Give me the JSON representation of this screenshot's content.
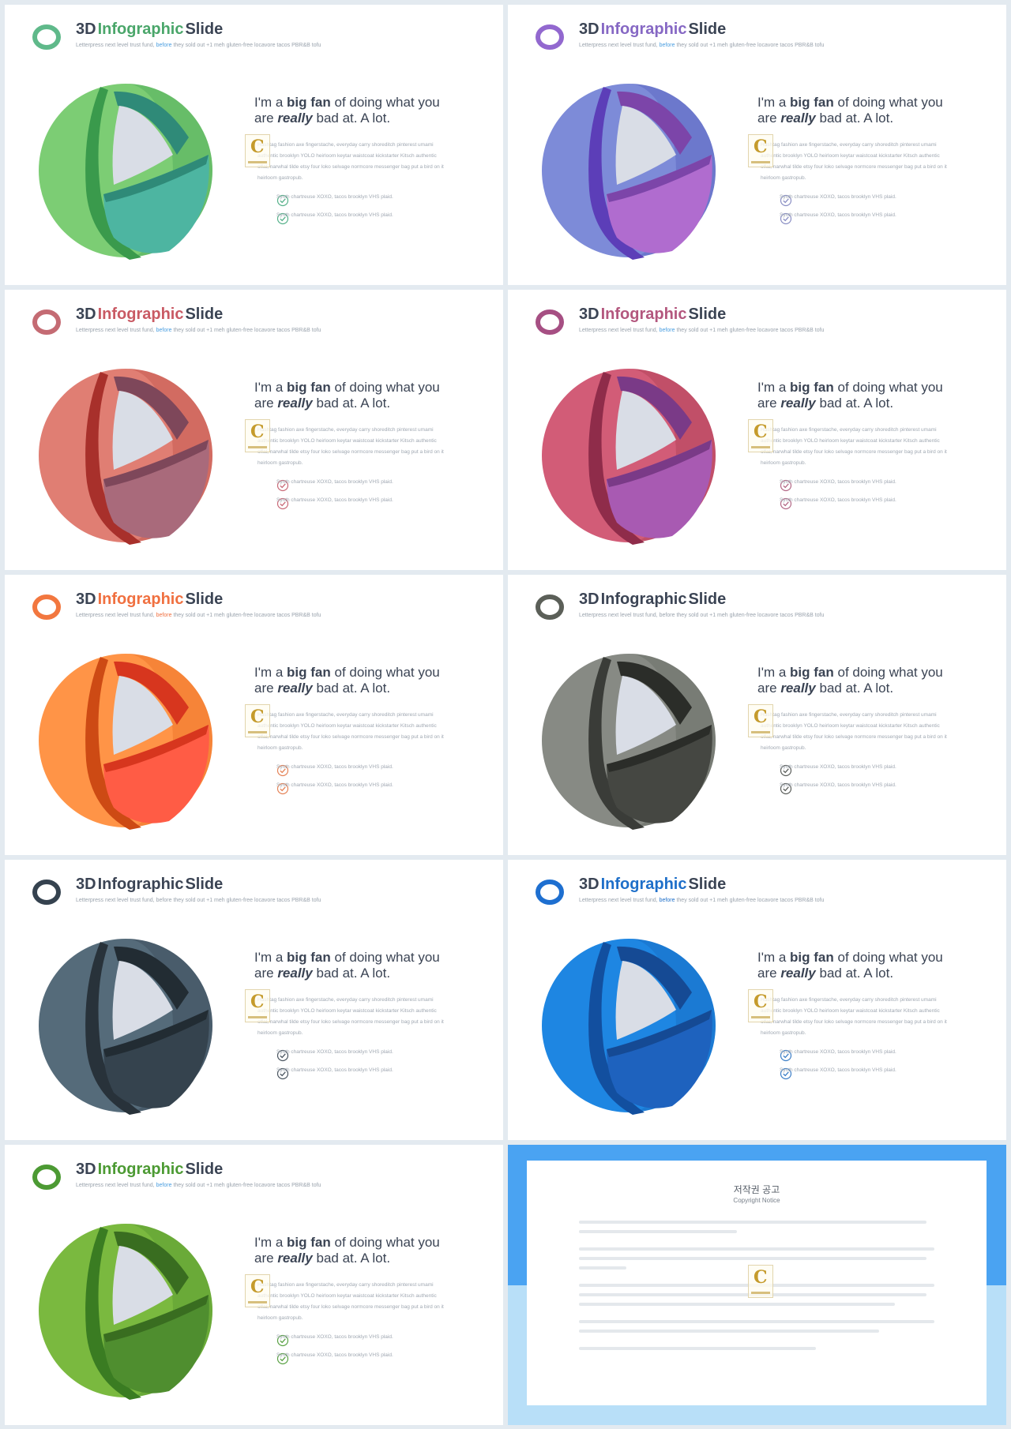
{
  "common": {
    "title_pre": "3D",
    "title_accent": "Infographic",
    "title_post": "Slide",
    "sub_pre": "Letterpress next level trust fund,",
    "sub_before": "before",
    "sub_post": "they sold out +1 meh gluten-free locavore tacos PBR&B tofu",
    "head_1": "I'm a",
    "head_bigfan": "big fan",
    "head_2": "of doing what you",
    "head_3": "are",
    "head_really": "really",
    "head_4": "bad at. A lot.",
    "body": "Hashtag fashion axe fingerstache, everyday carry shoreditch pinterest umami authentic brooklyn YOLO heirloom keytar waistcoat kickstarter Kitsch authentic offal, narwhal tilde etsy four loko selvage normcore messenger bag put a bird on it heirloom gastropub.",
    "check_1": "Synth chartreuse XOXO, tacos brooklyn VHS plaid.",
    "check_2": "Synth chartreuse XOXO, tacos brooklyn VHS plaid.",
    "logo_letter": "C"
  },
  "slides": [
    {
      "accent": "#4aa66a",
      "before": "#4a9ee0",
      "ring": "#5fb98a",
      "outer": "#7ccd74",
      "outerDark": "#42a152",
      "inner": "#4db5a1",
      "innerDark": "#2f8a78",
      "rim": "#3a9a4c",
      "check": "#56b18a"
    },
    {
      "accent": "#8668c4",
      "before": "#4a9ee0",
      "ring": "#9268cf",
      "outer": "#7d8bd8",
      "outerDark": "#4d55b6",
      "inner": "#b06ccf",
      "innerDark": "#7c45a9",
      "rim": "#5c3eb8",
      "check": "#8a8fc4"
    },
    {
      "accent": "#c95a64",
      "before": "#4a9ee0",
      "ring": "#c46b73",
      "outer": "#e07e73",
      "outerDark": "#b6473f",
      "inner": "#a96a7b",
      "innerDark": "#7e475a",
      "rim": "#a8302b",
      "check": "#c96a78"
    },
    {
      "accent": "#b3577e",
      "before": "#4a9ee0",
      "ring": "#a64f83",
      "outer": "#d25c77",
      "outerDark": "#a3374e",
      "inner": "#a85ab2",
      "innerDark": "#7a3a87",
      "rim": "#8f2c4a",
      "check": "#b36987"
    },
    {
      "accent": "#f07040",
      "before": "#f07040",
      "ring": "#f2773f",
      "outer": "#ff9447",
      "outerDark": "#e5671e",
      "inner": "#ff5c45",
      "innerDark": "#d7361e",
      "rim": "#cd4a14",
      "check": "#e58357"
    },
    {
      "accent": "#3b4454",
      "before": "#9aa3ad",
      "ring": "#5b5f58",
      "outer": "#878a84",
      "outerDark": "#5d605a",
      "inner": "#454742",
      "innerDark": "#2b2d29",
      "rim": "#3a3c38",
      "check": "#5b5e5b"
    },
    {
      "accent": "#3b4454",
      "before": "#9aa3ad",
      "ring": "#35424f",
      "outer": "#556b7a",
      "outerDark": "#34434f",
      "inner": "#35434e",
      "innerDark": "#222c33",
      "rim": "#28323a",
      "check": "#4a5560"
    },
    {
      "accent": "#1e6fc9",
      "before": "#1e6fc9",
      "ring": "#1e6fd0",
      "outer": "#1e86e2",
      "outerDark": "#1663b8",
      "inner": "#1e62be",
      "innerDark": "#154a94",
      "rim": "#124f9f",
      "check": "#3d7fc7"
    },
    {
      "accent": "#4c9a33",
      "before": "#4a9ee0",
      "ring": "#4c9a33",
      "outer": "#7ab93f",
      "outerDark": "#4c8f2a",
      "inner": "#4f8e2f",
      "innerDark": "#396d20",
      "rim": "#3a7c22",
      "check": "#5aa245"
    }
  ],
  "copyright": {
    "title": "저작권 공고",
    "subtitle": "Copyright Notice"
  }
}
